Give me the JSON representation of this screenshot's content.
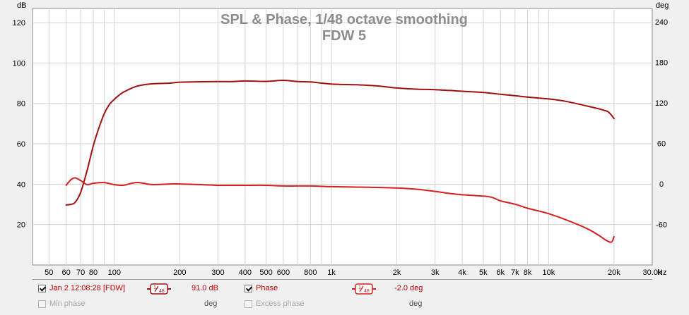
{
  "chart_data": {
    "type": "line",
    "title": "SPL & Phase, 1/48 octave smoothing",
    "subtitle": "FDW 5",
    "x_scale": "log",
    "xlim": [
      42,
      30000
    ],
    "ylim": [
      0,
      127
    ],
    "y2lim": [
      -120,
      260
    ],
    "grid": true,
    "left_axis_unit": "dB",
    "right_axis_unit": "deg",
    "x_unit": "Hz",
    "x_tick_labels": [
      {
        "v": 50,
        "t": "50"
      },
      {
        "v": 60,
        "t": "60"
      },
      {
        "v": 70,
        "t": "70"
      },
      {
        "v": 80,
        "t": "80"
      },
      {
        "v": 100,
        "t": "100"
      },
      {
        "v": 200,
        "t": "200"
      },
      {
        "v": 300,
        "t": "300"
      },
      {
        "v": 400,
        "t": "400"
      },
      {
        "v": 500,
        "t": "500"
      },
      {
        "v": 600,
        "t": "600"
      },
      {
        "v": 800,
        "t": "800"
      },
      {
        "v": 1000,
        "t": "1k"
      },
      {
        "v": 2000,
        "t": "2k"
      },
      {
        "v": 3000,
        "t": "3k"
      },
      {
        "v": 4000,
        "t": "4k"
      },
      {
        "v": 5000,
        "t": "5k"
      },
      {
        "v": 6000,
        "t": "6k"
      },
      {
        "v": 7000,
        "t": "7k"
      },
      {
        "v": 8000,
        "t": "8k"
      },
      {
        "v": 10000,
        "t": "10k"
      },
      {
        "v": 20000,
        "t": "20k"
      },
      {
        "v": 30000,
        "t": "30.0k"
      }
    ],
    "y_ticks": [
      20,
      40,
      60,
      80,
      100,
      120
    ],
    "y2_ticks": [
      -60,
      0,
      60,
      120,
      180,
      240
    ],
    "series": [
      {
        "name": "Jan 2 12:08:28 [FDW]",
        "axis": "left",
        "color": "#a01010",
        "x": [
          60,
          63,
          66,
          70,
          75,
          80,
          85,
          90,
          95,
          100,
          105,
          110,
          120,
          130,
          150,
          180,
          200,
          250,
          300,
          350,
          400,
          500,
          600,
          700,
          800,
          1000,
          1300,
          1600,
          2000,
          2500,
          3000,
          4000,
          5000,
          6000,
          7000,
          8000,
          10000,
          12000,
          15000,
          18000,
          19000,
          20000
        ],
        "y": [
          29.7,
          30,
          31,
          36,
          47,
          59,
          68,
          75,
          79.5,
          82,
          84,
          85.5,
          87.5,
          88.8,
          89.7,
          90,
          90.5,
          90.7,
          90.8,
          90.8,
          91.1,
          90.9,
          91.4,
          90.8,
          90.6,
          89.6,
          89.2,
          88.7,
          87.6,
          87,
          86.8,
          86,
          85.4,
          84.5,
          83.8,
          83.1,
          82.2,
          81,
          78.7,
          76.6,
          75.4,
          72.5
        ]
      },
      {
        "name": "Phase",
        "axis": "right",
        "color": "#d42020",
        "x": [
          60,
          63,
          66,
          70,
          75,
          80,
          90,
          100,
          110,
          120,
          130,
          150,
          180,
          200,
          250,
          300,
          350,
          400,
          500,
          600,
          800,
          1000,
          1500,
          2000,
          2500,
          3000,
          3500,
          4000,
          5000,
          5500,
          6000,
          7000,
          8000,
          9000,
          10000,
          12000,
          15000,
          17000,
          18500,
          19500,
          20000
        ],
        "y": [
          -2,
          6,
          9,
          5,
          -1,
          1,
          2,
          -1,
          -2,
          1,
          2,
          -1,
          0,
          0,
          -1,
          -2,
          -2,
          -2,
          -2,
          -3,
          -3,
          -4,
          -5,
          -6,
          -8,
          -11,
          -14,
          -16,
          -18,
          -20,
          -25,
          -30,
          -36,
          -40,
          -44,
          -53,
          -66,
          -76,
          -84,
          -86,
          -78
        ]
      }
    ]
  },
  "legend": {
    "row1": {
      "series1_label": "Jan 2 12:08:28 [FDW]",
      "series1_value": "91.0 dB",
      "phase_label": "Phase",
      "phase_value": "-2.0 deg"
    },
    "row2": {
      "min_phase_label": "Min phase",
      "min_phase_unit": "deg",
      "excess_phase_label": "Excess phase",
      "excess_phase_unit": "deg"
    }
  }
}
